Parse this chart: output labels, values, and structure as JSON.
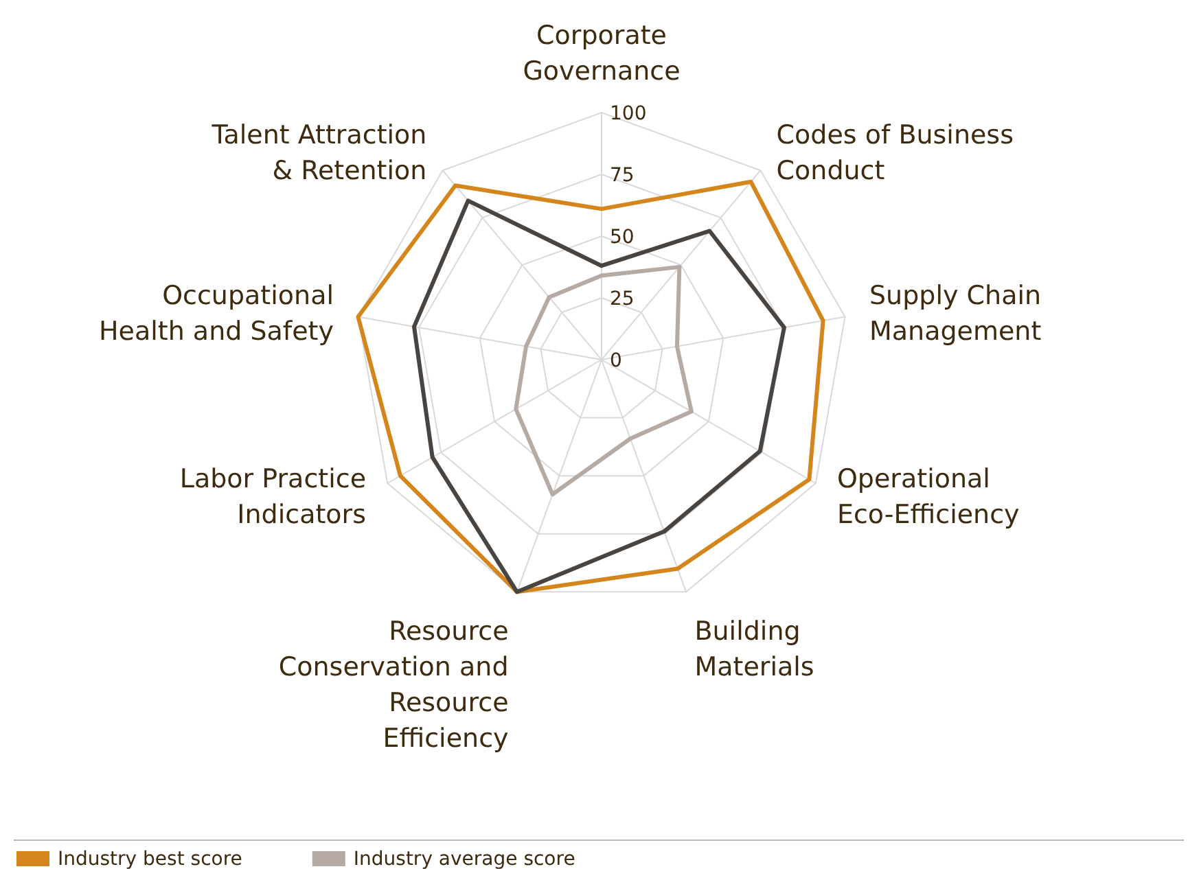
{
  "chart_data": {
    "type": "radar",
    "categories": [
      "Corporate\nGovernance",
      "Codes of Business\nConduct",
      "Supply Chain\nManagement",
      "Operational\nEco-Efficiency",
      "Building\nMaterials",
      "Resource\nConservation and\nResource\nEfficiency",
      "Labor Practice\nIndicators",
      "Occupational\nHealth and Safety",
      "Talent Attraction\n& Retention"
    ],
    "ylim": [
      0,
      100
    ],
    "yticks": [
      0,
      25,
      50,
      75,
      100
    ],
    "legend": "bottom",
    "grid": true,
    "series": [
      {
        "name": "Industry best score",
        "color": "#d4861c",
        "values": [
          61,
          94,
          91,
          97,
          90,
          100,
          94,
          100,
          92
        ]
      },
      {
        "name": "Industry average score",
        "color": "#b5aba4",
        "values": [
          34,
          49,
          31,
          42,
          34,
          58,
          40,
          31,
          33
        ]
      },
      {
        "color": "#4a4440",
        "values": [
          38,
          68,
          75,
          74,
          74,
          100,
          79,
          77,
          84
        ]
      }
    ]
  }
}
